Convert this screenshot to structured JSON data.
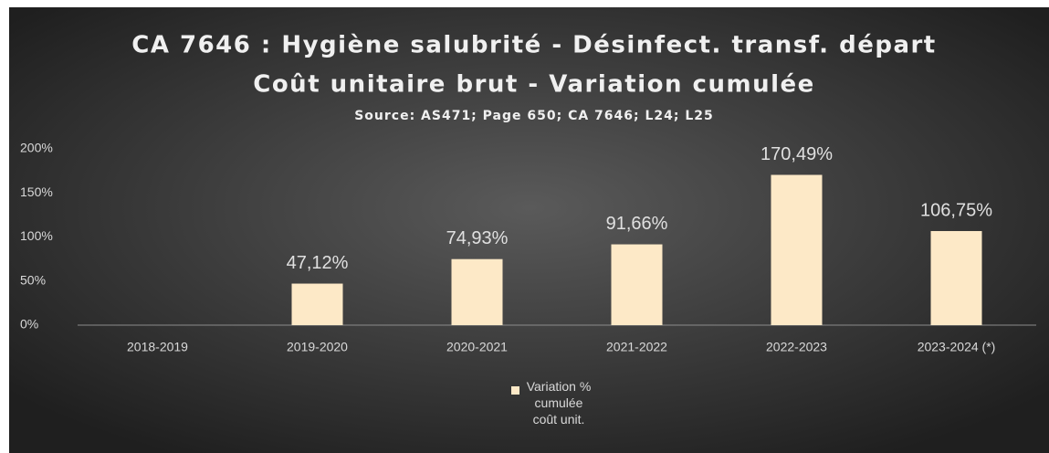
{
  "chart_data": {
    "type": "bar",
    "title": "CA 7646 : Hygiène salubrité - Désinfect. transf. départ",
    "subtitle": "Coût unitaire brut - Variation cumulée",
    "source": "Source: AS471; Page 650; CA 7646; L24; L25",
    "categories": [
      "2018-2019",
      "2019-2020",
      "2020-2021",
      "2021-2022",
      "2022-2023",
      "2023-2024 (*)"
    ],
    "series": [
      {
        "name": "Variation % cumulée coût unit.",
        "color": "#fde9c7",
        "values": [
          0,
          47.12,
          74.93,
          91.66,
          170.49,
          106.75
        ],
        "value_labels": [
          null,
          "47,12%",
          "74,93%",
          "91,66%",
          "170,49%",
          "106,75%"
        ]
      }
    ],
    "ylim": [
      0,
      200
    ],
    "yticks": [
      {
        "value": 0,
        "label": "0%"
      },
      {
        "value": 50,
        "label": "50%"
      },
      {
        "value": 100,
        "label": "100%"
      },
      {
        "value": 150,
        "label": "150%"
      },
      {
        "value": 200,
        "label": "200%"
      }
    ],
    "grid": false,
    "legend": "bottom"
  }
}
